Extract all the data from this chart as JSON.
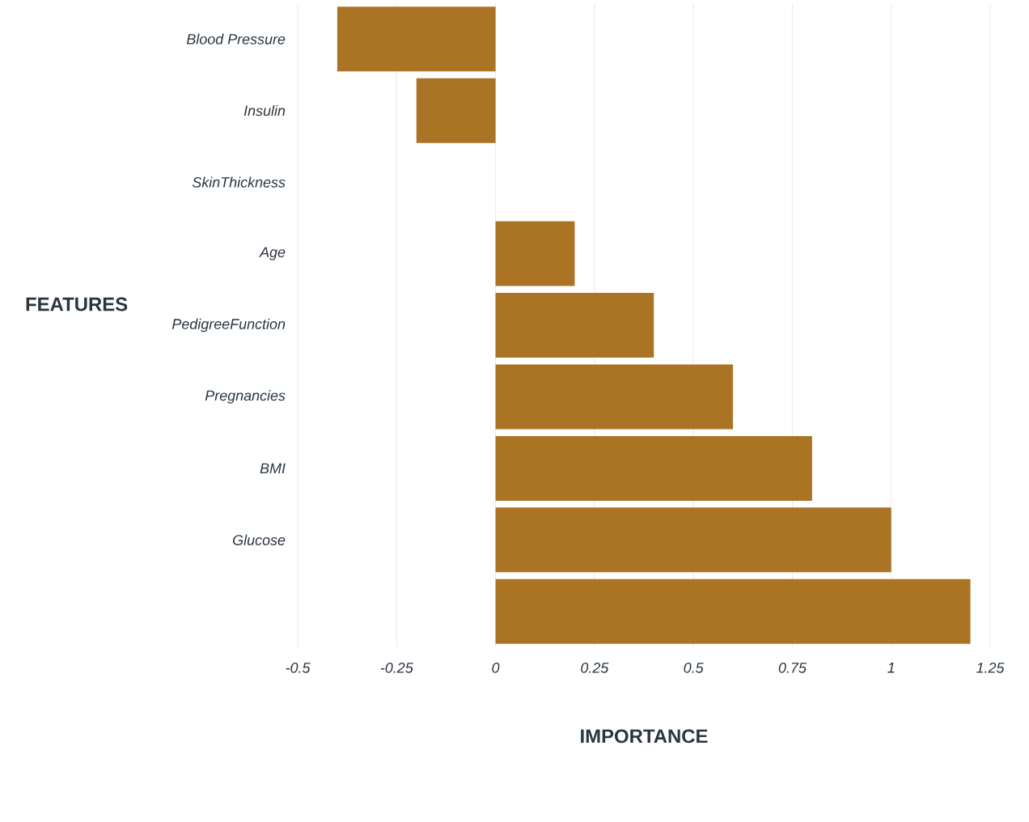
{
  "chart_data": {
    "type": "bar",
    "orientation": "horizontal",
    "xlabel": "IMPORTANCE",
    "ylabel": "FEATURES",
    "categories": [
      "Blood Pressure",
      "Insulin",
      "SkinThickness",
      "Age",
      "PedigreeFunction",
      "Pregnancies",
      "BMI",
      "Glucose",
      null
    ],
    "values": [
      -0.4,
      -0.2,
      0,
      0.2,
      0.4,
      0.6,
      0.8,
      1.0,
      1.2
    ],
    "color": "#ab7425",
    "xlim": [
      -0.5,
      1.25
    ],
    "xticks": [
      -0.5,
      -0.25,
      0,
      0.25,
      0.5,
      0.75,
      1,
      1.25
    ],
    "grid": "x"
  }
}
